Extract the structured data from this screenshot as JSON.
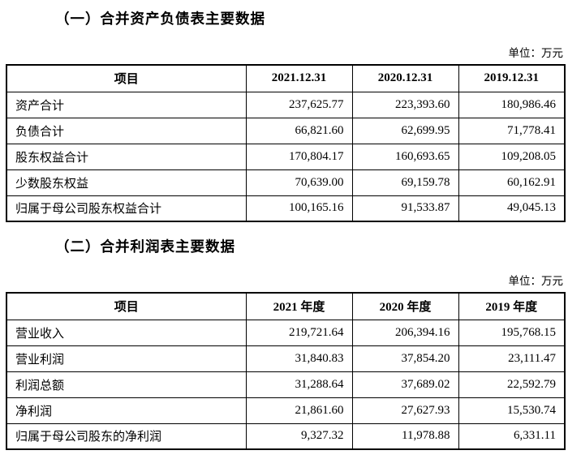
{
  "sections": [
    {
      "title": "（一）合并资产负债表主要数据",
      "unit_label": "单位：万元",
      "table": {
        "headers": [
          "项目",
          "2021.12.31",
          "2020.12.31",
          "2019.12.31"
        ],
        "rows": [
          {
            "label": "资产合计",
            "values": [
              "237,625.77",
              "223,393.60",
              "180,986.46"
            ]
          },
          {
            "label": "负债合计",
            "values": [
              "66,821.60",
              "62,699.95",
              "71,778.41"
            ]
          },
          {
            "label": "股东权益合计",
            "values": [
              "170,804.17",
              "160,693.65",
              "109,208.05"
            ]
          },
          {
            "label": "少数股东权益",
            "values": [
              "70,639.00",
              "69,159.78",
              "60,162.91"
            ]
          },
          {
            "label": "归属于母公司股东权益合计",
            "values": [
              "100,165.16",
              "91,533.87",
              "49,045.13"
            ]
          }
        ]
      }
    },
    {
      "title": "（二）合并利润表主要数据",
      "unit_label": "单位：万元",
      "table": {
        "headers": [
          "项目",
          "2021 年度",
          "2020 年度",
          "2019 年度"
        ],
        "rows": [
          {
            "label": "营业收入",
            "values": [
              "219,721.64",
              "206,394.16",
              "195,768.15"
            ]
          },
          {
            "label": "营业利润",
            "values": [
              "31,840.83",
              "37,854.20",
              "23,111.47"
            ]
          },
          {
            "label": "利润总额",
            "values": [
              "31,288.64",
              "37,689.02",
              "22,592.79"
            ]
          },
          {
            "label": "净利润",
            "values": [
              "21,861.60",
              "27,627.93",
              "15,530.74"
            ]
          },
          {
            "label": "归属于母公司股东的净利润",
            "values": [
              "9,327.32",
              "11,978.88",
              "6,331.11"
            ]
          }
        ]
      }
    }
  ]
}
